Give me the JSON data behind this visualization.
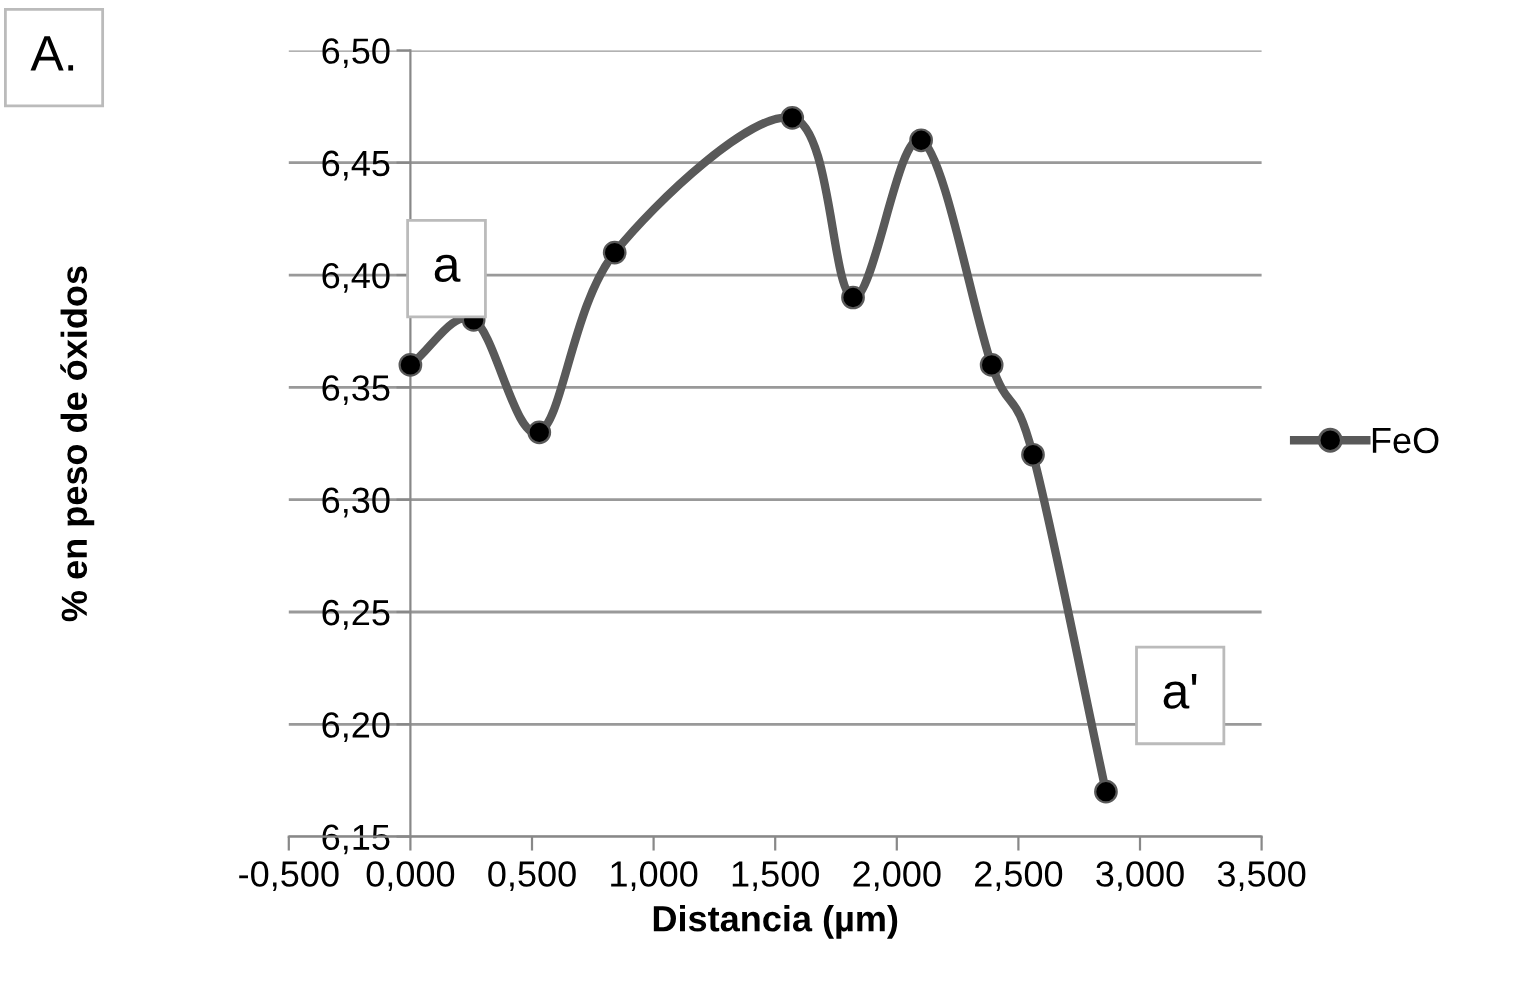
{
  "chart_data": {
    "type": "line",
    "xlabel": "Distancia (µm)",
    "ylabel": "% en peso de óxidos",
    "series": [
      {
        "name": "FeO",
        "color": "#595959",
        "x": [
          0.0,
          0.26,
          0.53,
          0.84,
          1.57,
          1.82,
          2.1,
          2.39,
          2.56,
          2.86
        ],
        "values": [
          6.36,
          6.38,
          6.33,
          6.41,
          6.47,
          6.39,
          6.46,
          6.36,
          6.32,
          6.17
        ]
      }
    ],
    "xlim": [
      -0.5,
      3.5
    ],
    "xticks": [
      {
        "value": -0.5,
        "label": "-0,500"
      },
      {
        "value": 0,
        "label": "0,000"
      },
      {
        "value": 0.5,
        "label": "0,500"
      },
      {
        "value": 1,
        "label": "1,000"
      },
      {
        "value": 1.5,
        "label": "1,500"
      },
      {
        "value": 2,
        "label": "2,000"
      },
      {
        "value": 2.5,
        "label": "2,500"
      },
      {
        "value": 3,
        "label": "3,000"
      },
      {
        "value": 3.5,
        "label": "3,500"
      }
    ],
    "ylim": [
      6.15,
      6.5
    ],
    "yticks": [
      {
        "value": 6.15,
        "label": "6,15"
      },
      {
        "value": 6.2,
        "label": "6,20"
      },
      {
        "value": 6.25,
        "label": "6,25"
      },
      {
        "value": 6.3,
        "label": "6,30"
      },
      {
        "value": 6.35,
        "label": "6,35"
      },
      {
        "value": 6.4,
        "label": "6,40"
      },
      {
        "value": 6.45,
        "label": "6,45"
      },
      {
        "value": 6.5,
        "label": "6,50"
      }
    ],
    "annotations": [
      "A.",
      {
        "text": "a",
        "x": 0.0,
        "y": 6.36
      },
      {
        "text": "a'",
        "x": 2.86,
        "y": 6.17
      }
    ],
    "grid": "y",
    "legend": "right",
    "marker": "circle",
    "line_style": "solid"
  }
}
